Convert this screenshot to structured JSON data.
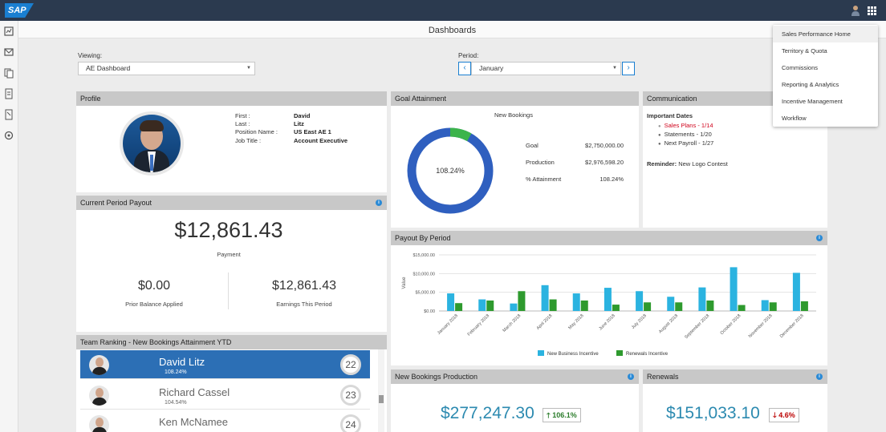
{
  "shell": {
    "logo": "SAP",
    "user_icon": "user-icon",
    "grid_icon": "grid-menu-icon"
  },
  "rail": {
    "icons": [
      "dashboard-icon",
      "mail-icon",
      "documents-icon",
      "report-icon",
      "book-icon",
      "settings-icon"
    ]
  },
  "page": {
    "title": "Dashboards"
  },
  "filters": {
    "viewing_label": "Viewing:",
    "viewing_value": "AE Dashboard",
    "period_label": "Period:",
    "period_value": "January",
    "prev": "‹",
    "next": "›"
  },
  "profile": {
    "title": "Profile",
    "fields": [
      {
        "key": "First :",
        "value": "David"
      },
      {
        "key": "Last :",
        "value": "Litz"
      },
      {
        "key": "Position Name :",
        "value": "US East AE 1"
      },
      {
        "key": "Job Title :",
        "value": "Account Executive"
      }
    ]
  },
  "payout": {
    "title": "Current Period Payout",
    "payment": "$12,861.43",
    "payment_label": "Payment",
    "prior": "$0.00",
    "prior_label": "Prior Balance Applied",
    "earnings": "$12,861.43",
    "earnings_label": "Earnings This Period"
  },
  "ranking": {
    "title": "Team Ranking - New Bookings Attainment YTD",
    "rows": [
      {
        "name": "David Litz",
        "pct": "108.24%",
        "rank": "22"
      },
      {
        "name": "Richard Cassel",
        "pct": "104.54%",
        "rank": "23"
      },
      {
        "name": "Ken McNamee",
        "pct": "",
        "rank": "24"
      }
    ]
  },
  "goal": {
    "title": "Goal Attainment",
    "chart_title": "New Bookings",
    "center": "108.24%",
    "attainment_fraction": 1.0824,
    "rows": [
      {
        "key": "Goal",
        "value": "$2,750,000.00"
      },
      {
        "key": "Production",
        "value": "$2,976,598.20"
      },
      {
        "key": "% Attainment",
        "value": "108.24%"
      }
    ],
    "colors": {
      "main": "#2f5fbf",
      "over": "#3cb44b"
    }
  },
  "communication": {
    "title": "Communication",
    "heading": "Important Dates",
    "items": [
      "Sales Plans - 1/14",
      "Statements - 1/20",
      "Next Payroll - 1/27"
    ],
    "reminder_label": "Reminder:",
    "reminder_text": "New Logo Contest"
  },
  "payout_period": {
    "title": "Payout By Period",
    "legend": [
      "New Business Incentive",
      "Renewals Incentive"
    ]
  },
  "chart_data": {
    "type": "bar",
    "ylabel": "Value",
    "xlabel": "",
    "ylim": [
      0,
      15000
    ],
    "yticks": [
      "$0.00",
      "$5,000.00",
      "$10,000.00",
      "$15,000.00"
    ],
    "ytick_values": [
      0,
      5000,
      10000,
      15000
    ],
    "categories": [
      "January 2018",
      "February 2018",
      "March 2018",
      "April 2018",
      "May 2018",
      "June 2018",
      "July 2018",
      "August 2018",
      "September 2018",
      "October 2018",
      "November 2018",
      "December 2018"
    ],
    "series": [
      {
        "name": "New Business Incentive",
        "color": "#2bb3e0",
        "values": [
          4700,
          3100,
          2000,
          6900,
          4700,
          6200,
          5300,
          3800,
          6300,
          11700,
          2900,
          10200
        ]
      },
      {
        "name": "Renewals Incentive",
        "color": "#2e9a2e",
        "values": [
          2100,
          2800,
          5300,
          3100,
          2800,
          1700,
          2300,
          2300,
          2800,
          1600,
          2300,
          2600
        ]
      }
    ],
    "grid": true,
    "legend_position": "bottom"
  },
  "new_bookings": {
    "title": "New Bookings Production",
    "value": "$277,247.30",
    "badge": "106.1%",
    "arrow": "🡑"
  },
  "renewals": {
    "title": "Renewals",
    "value": "$151,033.10",
    "badge": "4.6%",
    "arrow": "🡓"
  },
  "menu": {
    "items": [
      "Sales Performance Home",
      "Territory & Quota",
      "Commissions",
      "Reporting & Analytics",
      "Incentive Management",
      "Workflow"
    ]
  },
  "info": "i"
}
